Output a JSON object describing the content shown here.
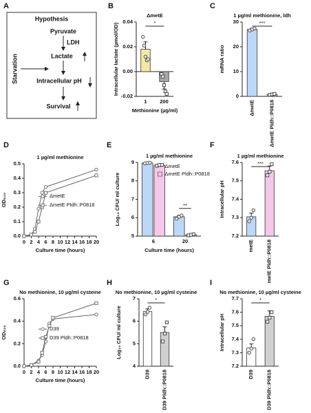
{
  "diagram": {
    "panel": "A",
    "title": "Hypothesis",
    "nodes": [
      "Pyruvate",
      "LDH",
      "Lactate",
      "Starvation",
      "Intracellular pH",
      "Survival"
    ]
  },
  "chart_data": [
    {
      "type": "bar",
      "panel": "B",
      "title": "ΔmetE",
      "xlabel": "Methionine (µg/ml)",
      "ylabel": "Intracellular lactate (µmol/OD)",
      "categories": [
        "1",
        "200"
      ],
      "values": [
        0.018,
        -0.008
      ],
      "errors": [
        0.006,
        0.006
      ],
      "colors": [
        "#f6e8a6",
        "#a6a6a6"
      ],
      "points": [
        [
          0.028,
          0.021,
          0.012,
          0.009,
          0.01
        ],
        [
          -0.002,
          -0.004,
          -0.011,
          -0.016,
          -0.018
        ]
      ],
      "ylim": [
        -0.02,
        0.04
      ],
      "yticks": [
        -0.02,
        {
          "value": 0,
          "label": "0.00"
        },
        0.02,
        0.04
      ],
      "significance": "*"
    },
    {
      "type": "bar",
      "panel": "C",
      "title": "1 µg/ml methionine, ldh",
      "ylabel": "mRNA ratio",
      "categories": [
        "ΔmetE",
        "ΔmetE Pldh::P0818"
      ],
      "values": [
        27,
        0.8
      ],
      "errors": [
        0.5,
        0.2
      ],
      "colors": [
        "#bdd7f7",
        "#f4c8e8"
      ],
      "points": [
        [
          26.6,
          27.0,
          27.4
        ],
        [
          0.6,
          0.8,
          1.0
        ]
      ],
      "ylim": [
        0,
        30
      ],
      "yticks": [
        0,
        10,
        20,
        30
      ],
      "significance": "***"
    },
    {
      "type": "line",
      "panel": "D",
      "title": "1 µg/ml methionine",
      "xlabel": "Culture time (hours)",
      "ylabel": "OD₆₂₀",
      "x": [
        0,
        2,
        3,
        4,
        5,
        6,
        20
      ],
      "xlim": [
        0,
        20
      ],
      "xticks": [
        0,
        2,
        4,
        6,
        8,
        10,
        12,
        14,
        16,
        18,
        20
      ],
      "ylim": [
        0,
        0.5
      ],
      "yticks": [
        {
          "value": 0,
          "label": "0.0"
        },
        0.1,
        0.2,
        0.3,
        0.4,
        0.5
      ],
      "legend": "lower right",
      "series": [
        {
          "name": "ΔmetE",
          "color": "#666666",
          "values": [
            0,
            0.01,
            0.05,
            0.19,
            0.3,
            0.34,
            0.46
          ]
        },
        {
          "name": "ΔmetE Pldh::P0818",
          "color": "#666666",
          "values": [
            0,
            0.01,
            0.03,
            0.1,
            0.2,
            0.3,
            0.42
          ]
        }
      ]
    },
    {
      "type": "bar",
      "panel": "E",
      "title": "1 µg/ml methionine",
      "xlabel": "Culture time (hours)",
      "ylabel": "Log₁₀ CFU/ ml culture",
      "categories": [
        "6",
        "20"
      ],
      "ylim": [
        5,
        9
      ],
      "yticks": [
        5,
        6,
        7,
        8,
        9
      ],
      "legend": "upper right",
      "significance": "**",
      "series": [
        {
          "name": "ΔmetE",
          "color": "#bdd7f7",
          "values": [
            8.97,
            6.05
          ],
          "errors": [
            0.02,
            0.08
          ],
          "points": [
            [
              8.95,
              8.97,
              8.99
            ],
            [
              5.95,
              6.05,
              6.12
            ]
          ]
        },
        {
          "name": "ΔmetE Pldh::P0818",
          "color": "#f4c8e8",
          "values": [
            8.85,
            5.07
          ],
          "errors": [
            0.03,
            0.03
          ],
          "points": [
            [
              8.82,
              8.86,
              8.87
            ],
            [
              5.04,
              5.07,
              5.1
            ]
          ]
        }
      ]
    },
    {
      "type": "bar",
      "panel": "F",
      "title": "1 µg/ml methionine",
      "ylabel": "Intracellular pH",
      "categories": [
        "metE",
        "metE Pldh::P0818"
      ],
      "values": [
        7.305,
        7.555
      ],
      "errors": [
        0.02,
        0.025
      ],
      "colors": [
        "#bdd7f7",
        "#f4c8e8"
      ],
      "points": [
        [
          7.28,
          7.3,
          7.34
        ],
        [
          7.53,
          7.55,
          7.59
        ]
      ],
      "ylim": [
        7.2,
        7.6
      ],
      "yticks": [
        7.2,
        7.3,
        7.4,
        7.5,
        7.6
      ],
      "significance": "***"
    },
    {
      "type": "line",
      "panel": "G",
      "title": "No methionine, 10 µg/ml cysteine",
      "xlabel": "Culture time (hours)",
      "ylabel": "OD₆₂₀",
      "x": [
        0,
        2,
        4,
        5,
        6,
        7,
        8,
        20
      ],
      "xlim": [
        0,
        20
      ],
      "xticks": [
        0,
        2,
        4,
        6,
        8,
        10,
        12,
        14,
        16,
        18,
        20
      ],
      "ylim": [
        0,
        0.6
      ],
      "yticks": [
        {
          "value": 0,
          "label": "0.0"
        },
        0.2,
        0.4,
        0.6
      ],
      "legend": "lower right",
      "series": [
        {
          "name": "D39",
          "color": "#666666",
          "values": [
            0,
            0.01,
            0.05,
            0.1,
            0.22,
            0.38,
            0.42,
            0.46
          ]
        },
        {
          "name": "D39 Pldh::P0818",
          "color": "#666666",
          "values": [
            0,
            0.01,
            0.04,
            0.12,
            0.26,
            0.36,
            0.43,
            0.56
          ]
        }
      ]
    },
    {
      "type": "bar",
      "panel": "H",
      "title": "No methionine, 10 µg/ml cysteine",
      "ylabel": "Log₁₀ CFU/ ml culture",
      "categories": [
        "D39",
        "D39 Pldh::P0818"
      ],
      "values": [
        6.43,
        5.5
      ],
      "errors": [
        0.12,
        0.25
      ],
      "colors": [
        "#ffffff",
        "#d0d0d0"
      ],
      "points": [
        [
          6.3,
          6.42,
          6.6
        ],
        [
          5.1,
          5.45,
          5.95
        ]
      ],
      "ylim": [
        4,
        7
      ],
      "yticks": [
        4,
        5,
        6,
        7
      ],
      "significance": "*"
    },
    {
      "type": "bar",
      "panel": "I",
      "title": "No methionine, 10 µg/ml cysteine",
      "ylabel": "Intracellular pH",
      "categories": [
        "D39",
        "D39 Pldh::P0818"
      ],
      "values": [
        7.335,
        7.57
      ],
      "errors": [
        0.03,
        0.04
      ],
      "colors": [
        "#ffffff",
        "#d0d0d0"
      ],
      "points": [
        [
          7.3,
          7.33,
          7.4
        ],
        [
          7.53,
          7.56,
          7.6
        ]
      ],
      "ylim": [
        7.2,
        7.7
      ],
      "yticks": [
        7.2,
        7.3,
        7.4,
        7.5,
        7.6,
        7.7
      ],
      "significance": "*"
    }
  ]
}
